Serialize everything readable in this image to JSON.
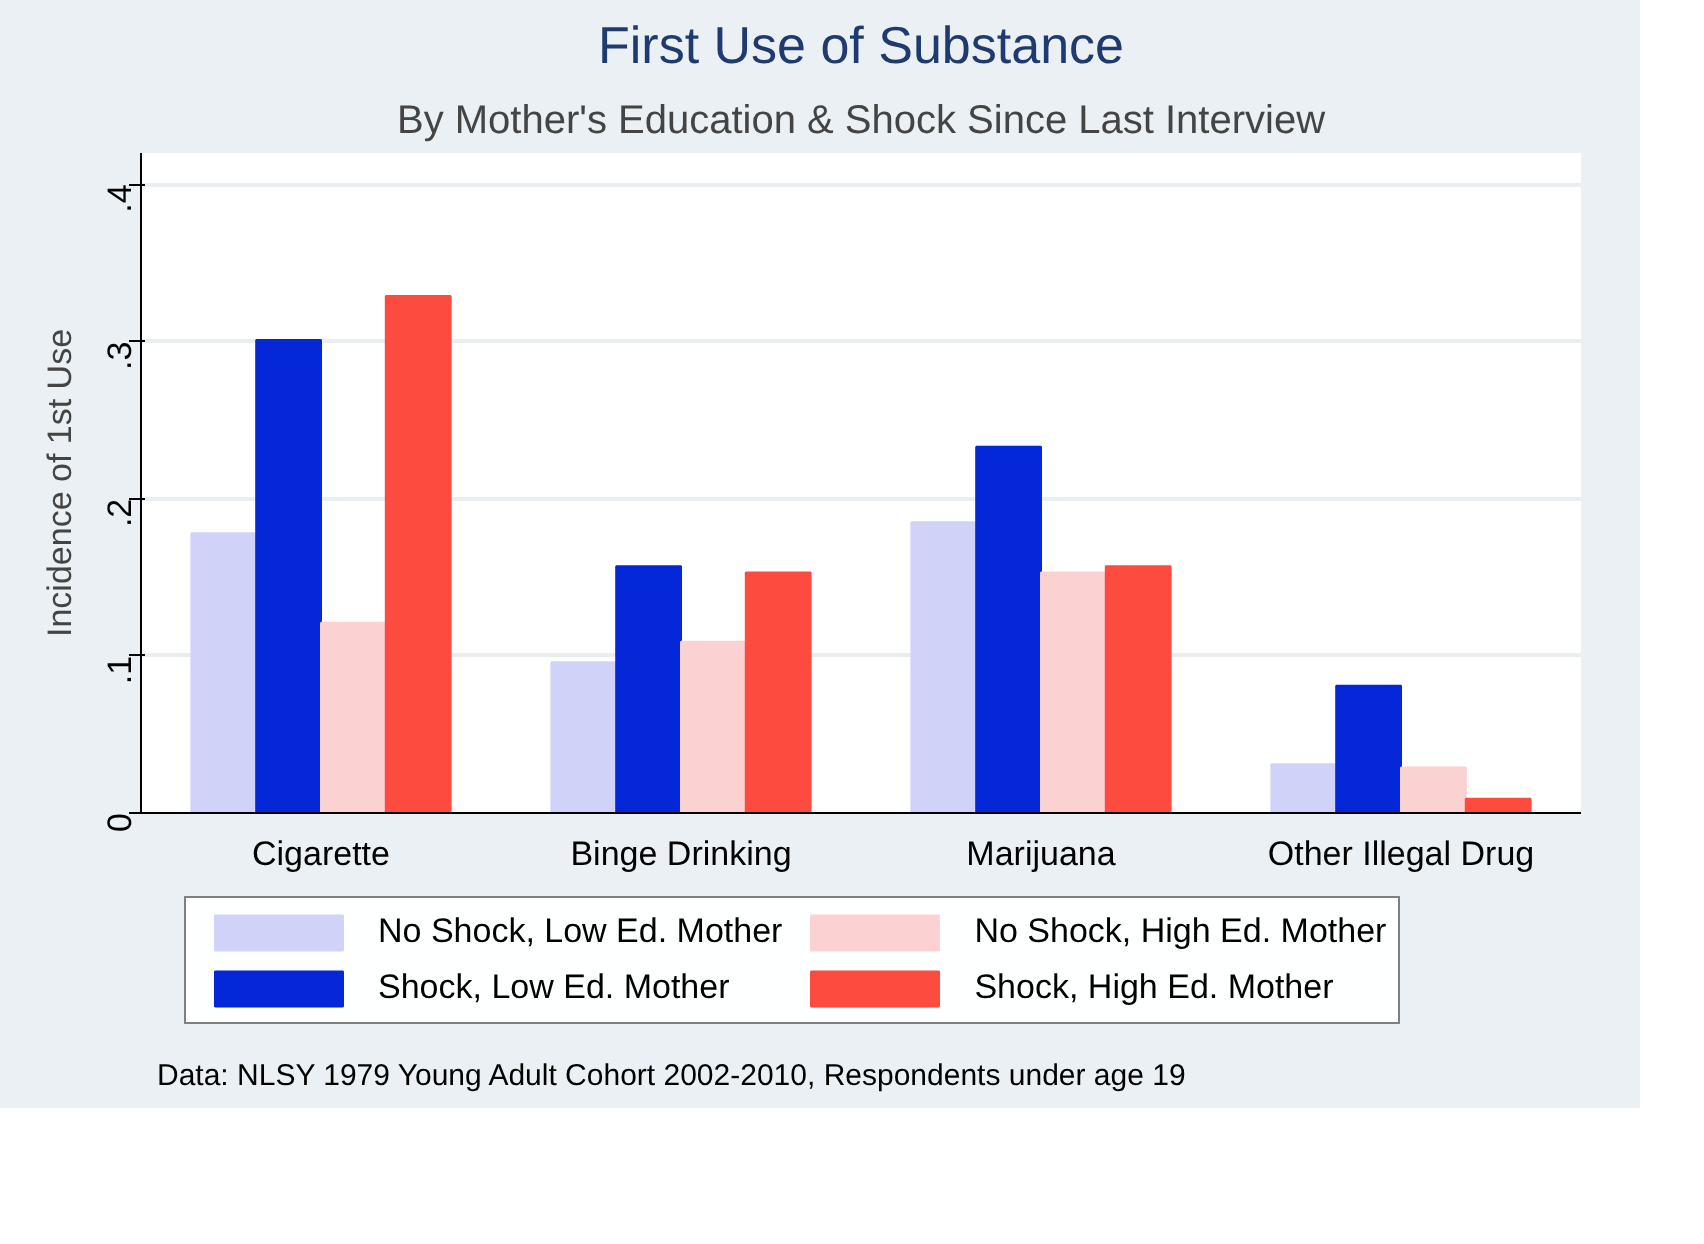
{
  "chart_data": {
    "type": "bar",
    "title": "First Use of Substance",
    "subtitle": "By Mother's Education & Shock Since Last Interview",
    "ylabel": "Incidence of 1st Use",
    "categories": [
      "Cigarette",
      "Binge Drinking",
      "Marijuana",
      "Other Illegal Drug"
    ],
    "series": [
      {
        "name": "No Shock, Low Ed. Mother",
        "color": "#d0d3f7",
        "values": [
          0.178,
          0.096,
          0.185,
          0.031
        ]
      },
      {
        "name": "Shock, Low Ed. Mother",
        "color": "#0427d8",
        "values": [
          0.301,
          0.157,
          0.233,
          0.081
        ]
      },
      {
        "name": "No Shock, High Ed. Mother",
        "color": "#fbd1d2",
        "values": [
          0.121,
          0.109,
          0.153,
          0.029
        ]
      },
      {
        "name": "Shock, High Ed. Mother",
        "color": "#fd4b40",
        "values": [
          0.329,
          0.153,
          0.157,
          0.009
        ]
      }
    ],
    "ylim": [
      0,
      0.42
    ],
    "yticks": [
      {
        "value": 0,
        "label": "0"
      },
      {
        "value": 0.1,
        "label": ".1"
      },
      {
        "value": 0.2,
        "label": ".2"
      },
      {
        "value": 0.3,
        "label": ".3"
      },
      {
        "value": 0.4,
        "label": ".4"
      }
    ],
    "grid": "y",
    "legend": "bottom",
    "annotations": [
      "Data: NLSY 1979 Young Adult Cohort 2002-2010, Respondents under age 19"
    ]
  }
}
